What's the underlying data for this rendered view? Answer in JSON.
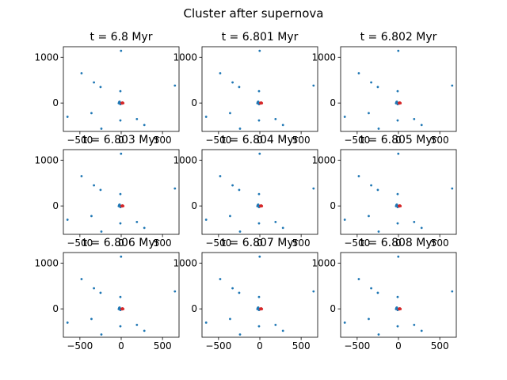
{
  "figure": {
    "suptitle": "Cluster after supernova"
  },
  "colors": {
    "stars": "#1f77b4",
    "supernova": "#d62728"
  },
  "chart_data": {
    "type": "scatter",
    "layout": "3x3 grid",
    "grid": false,
    "xlim": [
      -700,
      700
    ],
    "ylim": [
      -620,
      1230
    ],
    "xticks": [
      -500,
      0,
      500
    ],
    "xtick_labels": [
      "−500",
      "0",
      "500"
    ],
    "yticks": [
      0,
      1000
    ],
    "ytick_labels": [
      "0",
      "1000"
    ],
    "panels": [
      {
        "title": "t = 6.8 Myr"
      },
      {
        "title": "t = 6.801 Myr"
      },
      {
        "title": "t = 6.802 Myr"
      },
      {
        "title": "t = 6.803 Myr"
      },
      {
        "title": "t = 6.804 Myr"
      },
      {
        "title": "t = 6.805 Myr"
      },
      {
        "title": "t = 6.806 Myr"
      },
      {
        "title": "t = 6.807 Myr"
      },
      {
        "title": "t = 6.808 Myr"
      }
    ],
    "series": [
      {
        "points": [
          [
            -2,
            1140
          ],
          [
            -480,
            650
          ],
          [
            -330,
            450
          ],
          [
            -250,
            350
          ],
          [
            -10,
            260
          ],
          [
            650,
            380
          ],
          [
            -650,
            -300
          ],
          [
            -360,
            -220
          ],
          [
            -240,
            -560
          ],
          [
            -10,
            -380
          ],
          [
            190,
            -350
          ],
          [
            280,
            -480
          ],
          [
            -25,
            20
          ],
          [
            -15,
            -10
          ],
          [
            -30,
            -5
          ],
          [
            -5,
            5
          ],
          [
            -20,
            30
          ],
          [
            -10,
            -25
          ]
        ]
      },
      {
        "points": [
          [
            5,
            0
          ],
          [
            15,
            10
          ],
          [
            25,
            -5
          ],
          [
            10,
            -10
          ],
          [
            20,
            5
          ]
        ]
      }
    ]
  }
}
